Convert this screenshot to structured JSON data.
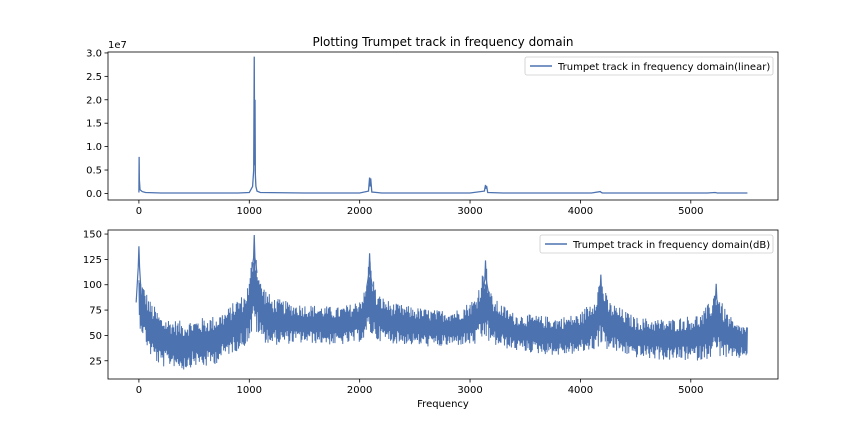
{
  "figure": {
    "title": "Plotting Trumpet track in frequency domain"
  },
  "chart_data": [
    {
      "type": "line",
      "title": "Plotting Trumpet track in frequency domain",
      "xlabel": "",
      "ylabel": "",
      "y_offset_label": "1e7",
      "xlim": [
        -280,
        5790
      ],
      "ylim": [
        -0.14,
        3.02
      ],
      "x_ticks": [
        0,
        1000,
        2000,
        3000,
        4000,
        5000
      ],
      "x_tick_labels": [
        "0",
        "1000",
        "2000",
        "3000",
        "4000",
        "5000"
      ],
      "y_ticks": [
        0.0,
        0.5,
        1.0,
        1.5,
        2.0,
        2.5,
        3.0
      ],
      "y_tick_labels": [
        "0.0",
        "0.5",
        "1.0",
        "1.5",
        "2.0",
        "2.5",
        "3.0"
      ],
      "grid": false,
      "legend_position": "top-right",
      "color": "#4c72b0",
      "series": [
        {
          "name": "Trumpet track in frequency domain(linear)",
          "x": [
            0,
            2,
            4,
            10,
            30,
            60,
            200,
            500,
            900,
            1000,
            1030,
            1040,
            1045,
            1048,
            1050,
            1052,
            1055,
            1060,
            1070,
            1100,
            1500,
            2000,
            2080,
            2090,
            2095,
            2100,
            2110,
            2200,
            3000,
            3130,
            3140,
            3145,
            3150,
            3160,
            3300,
            4100,
            4180,
            4190,
            4200,
            4300,
            5150,
            5220,
            5240,
            5300,
            5513
          ],
          "y": [
            0.02,
            0.78,
            0.3,
            0.08,
            0.04,
            0.02,
            0.01,
            0.01,
            0.01,
            0.02,
            0.15,
            0.5,
            2.92,
            1.2,
            0.6,
            2.0,
            0.4,
            0.15,
            0.05,
            0.02,
            0.01,
            0.01,
            0.05,
            0.34,
            0.15,
            0.32,
            0.03,
            0.01,
            0.01,
            0.05,
            0.18,
            0.1,
            0.16,
            0.02,
            0.01,
            0.01,
            0.04,
            0.02,
            0.01,
            0.01,
            0.01,
            0.02,
            0.01,
            0.01,
            0.01
          ]
        }
      ]
    },
    {
      "type": "line",
      "title": "",
      "xlabel": "Frequency",
      "ylabel": "",
      "xlim": [
        -280,
        5790
      ],
      "ylim": [
        7,
        154
      ],
      "x_ticks": [
        0,
        1000,
        2000,
        3000,
        4000,
        5000
      ],
      "x_tick_labels": [
        "0",
        "1000",
        "2000",
        "3000",
        "4000",
        "5000"
      ],
      "y_ticks": [
        25,
        50,
        75,
        100,
        125,
        150
      ],
      "y_tick_labels": [
        "25",
        "50",
        "75",
        "100",
        "125",
        "150"
      ],
      "grid": false,
      "legend_position": "top-right",
      "color": "#4c72b0",
      "series": [
        {
          "name": "Trumpet track in frequency domain(dB)",
          "style": "noisy band",
          "peaks": [
            {
              "x": 0,
              "y": 138
            },
            {
              "x": 1045,
              "y": 149
            },
            {
              "x": 2090,
              "y": 131
            },
            {
              "x": 3140,
              "y": 124
            },
            {
              "x": 4185,
              "y": 110
            },
            {
              "x": 5230,
              "y": 101
            }
          ],
          "band_x": [
            0,
            100,
            200,
            300,
            400,
            500,
            600,
            700,
            800,
            900,
            950,
            1000,
            1045,
            1100,
            1200,
            1400,
            1600,
            1800,
            1950,
            2050,
            2090,
            2150,
            2300,
            2500,
            2700,
            2900,
            3050,
            3140,
            3200,
            3400,
            3600,
            3800,
            4000,
            4120,
            4185,
            4250,
            4500,
            4800,
            5100,
            5180,
            5230,
            5290,
            5400,
            5513
          ],
          "band_upper": [
            110,
            85,
            70,
            66,
            64,
            66,
            68,
            70,
            76,
            88,
            90,
            105,
            149,
            105,
            88,
            82,
            80,
            78,
            82,
            95,
            131,
            92,
            82,
            78,
            75,
            76,
            88,
            124,
            88,
            72,
            70,
            68,
            72,
            88,
            110,
            85,
            68,
            66,
            72,
            85,
            101,
            80,
            62,
            60
          ],
          "band_lower": [
            60,
            30,
            18,
            20,
            15,
            20,
            18,
            22,
            30,
            35,
            38,
            45,
            55,
            45,
            40,
            42,
            42,
            40,
            42,
            45,
            50,
            45,
            42,
            40,
            38,
            40,
            40,
            45,
            40,
            35,
            32,
            30,
            32,
            35,
            40,
            35,
            28,
            25,
            25,
            28,
            30,
            28,
            25,
            30
          ]
        }
      ]
    }
  ]
}
